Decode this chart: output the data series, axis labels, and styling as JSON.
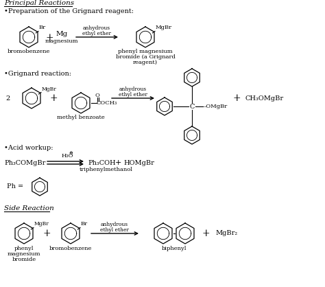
{
  "bg_color": "#ffffff",
  "sections": {
    "principal_reactions_title": "Principal Reactions",
    "prep_label": "•Preparation of the Grignard reagent:",
    "grignard_label": "•Grignard reaction:",
    "acid_label": "•Acid workup:",
    "side_title": "Side Reaction"
  }
}
